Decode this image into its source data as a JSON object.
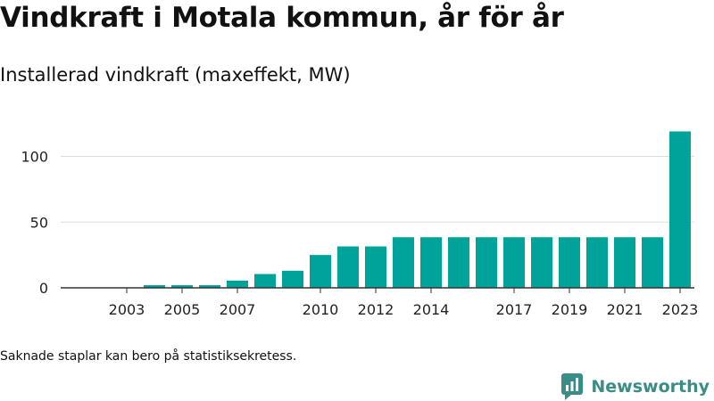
{
  "header": {
    "title": "Vindkraft i Motala kommun, år för år",
    "subtitle": "Installerad vindkraft (maxeffekt, MW)"
  },
  "footer": {
    "note": "Saknade staplar kan bero på statistiksekretess.",
    "brand": "Newsworthy",
    "brand_icon": "bar-chart-logo-icon"
  },
  "colors": {
    "bar": "#00a39a",
    "grid": "#dddddd",
    "axis": "#333333",
    "brand": "#3a8c86"
  },
  "chart_data": {
    "type": "bar",
    "title": "",
    "xlabel": "",
    "ylabel": "",
    "ylim": [
      0,
      125
    ],
    "y_ticks": [
      0,
      50,
      100
    ],
    "grid": true,
    "x_tick_labels": [
      "2003",
      "2005",
      "2007",
      "2010",
      "2012",
      "2014",
      "2017",
      "2019",
      "2021",
      "2023"
    ],
    "categories": [
      "2003",
      "2004",
      "2005",
      "2006",
      "2007",
      "2008",
      "2009",
      "2010",
      "2011",
      "2012",
      "2013",
      "2014",
      "2015",
      "2016",
      "2017",
      "2018",
      "2019",
      "2020",
      "2021",
      "2022",
      "2023"
    ],
    "values": [
      0,
      2,
      2,
      2,
      5.5,
      10.5,
      13,
      25,
      31.5,
      31.5,
      38.5,
      38.5,
      38.5,
      38.5,
      38.5,
      38.5,
      38.5,
      38.5,
      38.5,
      38.5,
      119
    ]
  }
}
